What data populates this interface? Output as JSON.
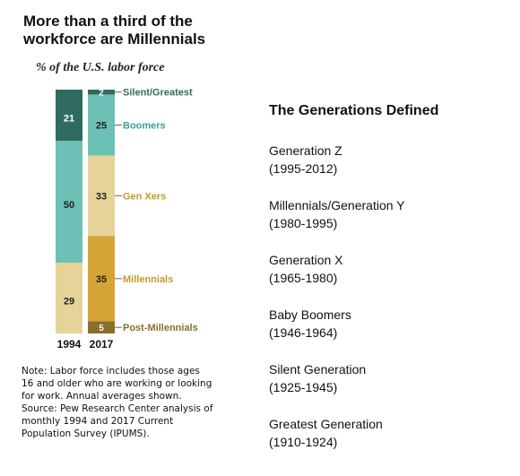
{
  "chart_panel": {
    "title_line1": "More than a third of the",
    "title_line2": "workforce are Millennials",
    "subtitle": "% of the U.S. labor force",
    "note_lines": [
      "Note: Labor force includes those ages",
      "16 and older who are working or looking",
      "for work. Annual averages shown.",
      "Source: Pew Research Center analysis of",
      "monthly 1994 and 2017 Current",
      "Population Survey (IPUMS)."
    ]
  },
  "chart_data": {
    "type": "bar",
    "stacked": true,
    "categories": [
      "1994",
      "2017"
    ],
    "series": [
      {
        "name": "Post-Millennials",
        "values": [
          0,
          5
        ],
        "color": "#8c6d2c"
      },
      {
        "name": "Millennials",
        "values": [
          0,
          35
        ],
        "color": "#d4a435"
      },
      {
        "name": "Gen Xers",
        "values": [
          29,
          33
        ],
        "color": "#e6d39a"
      },
      {
        "name": "Boomers",
        "values": [
          50,
          25
        ],
        "color": "#6cc0b5"
      },
      {
        "name": "Silent/Greatest",
        "values": [
          21,
          2
        ],
        "color": "#2f6b5f"
      }
    ],
    "series_label_colors": {
      "Post-Millennials": "#8c6d2c",
      "Millennials": "#c49a2c",
      "Gen Xers": "#c49a2c",
      "Boomers": "#3aa394",
      "Silent/Greatest": "#2f6b5f"
    },
    "ylim": [
      0,
      100
    ],
    "labeled_category": "2017"
  },
  "definitions": {
    "heading": "The Generations Defined",
    "items": [
      {
        "name": "Generation Z",
        "years": "(1995-2012)"
      },
      {
        "name": "Millennials/Generation Y",
        "years": "(1980-1995)"
      },
      {
        "name": "Generation X",
        "years": "(1965-1980)"
      },
      {
        "name": "Baby Boomers",
        "years": "(1946-1964)"
      },
      {
        "name": "Silent Generation",
        "years": "(1925-1945)"
      },
      {
        "name": "Greatest Generation",
        "years": "(1910-1924)"
      }
    ]
  }
}
